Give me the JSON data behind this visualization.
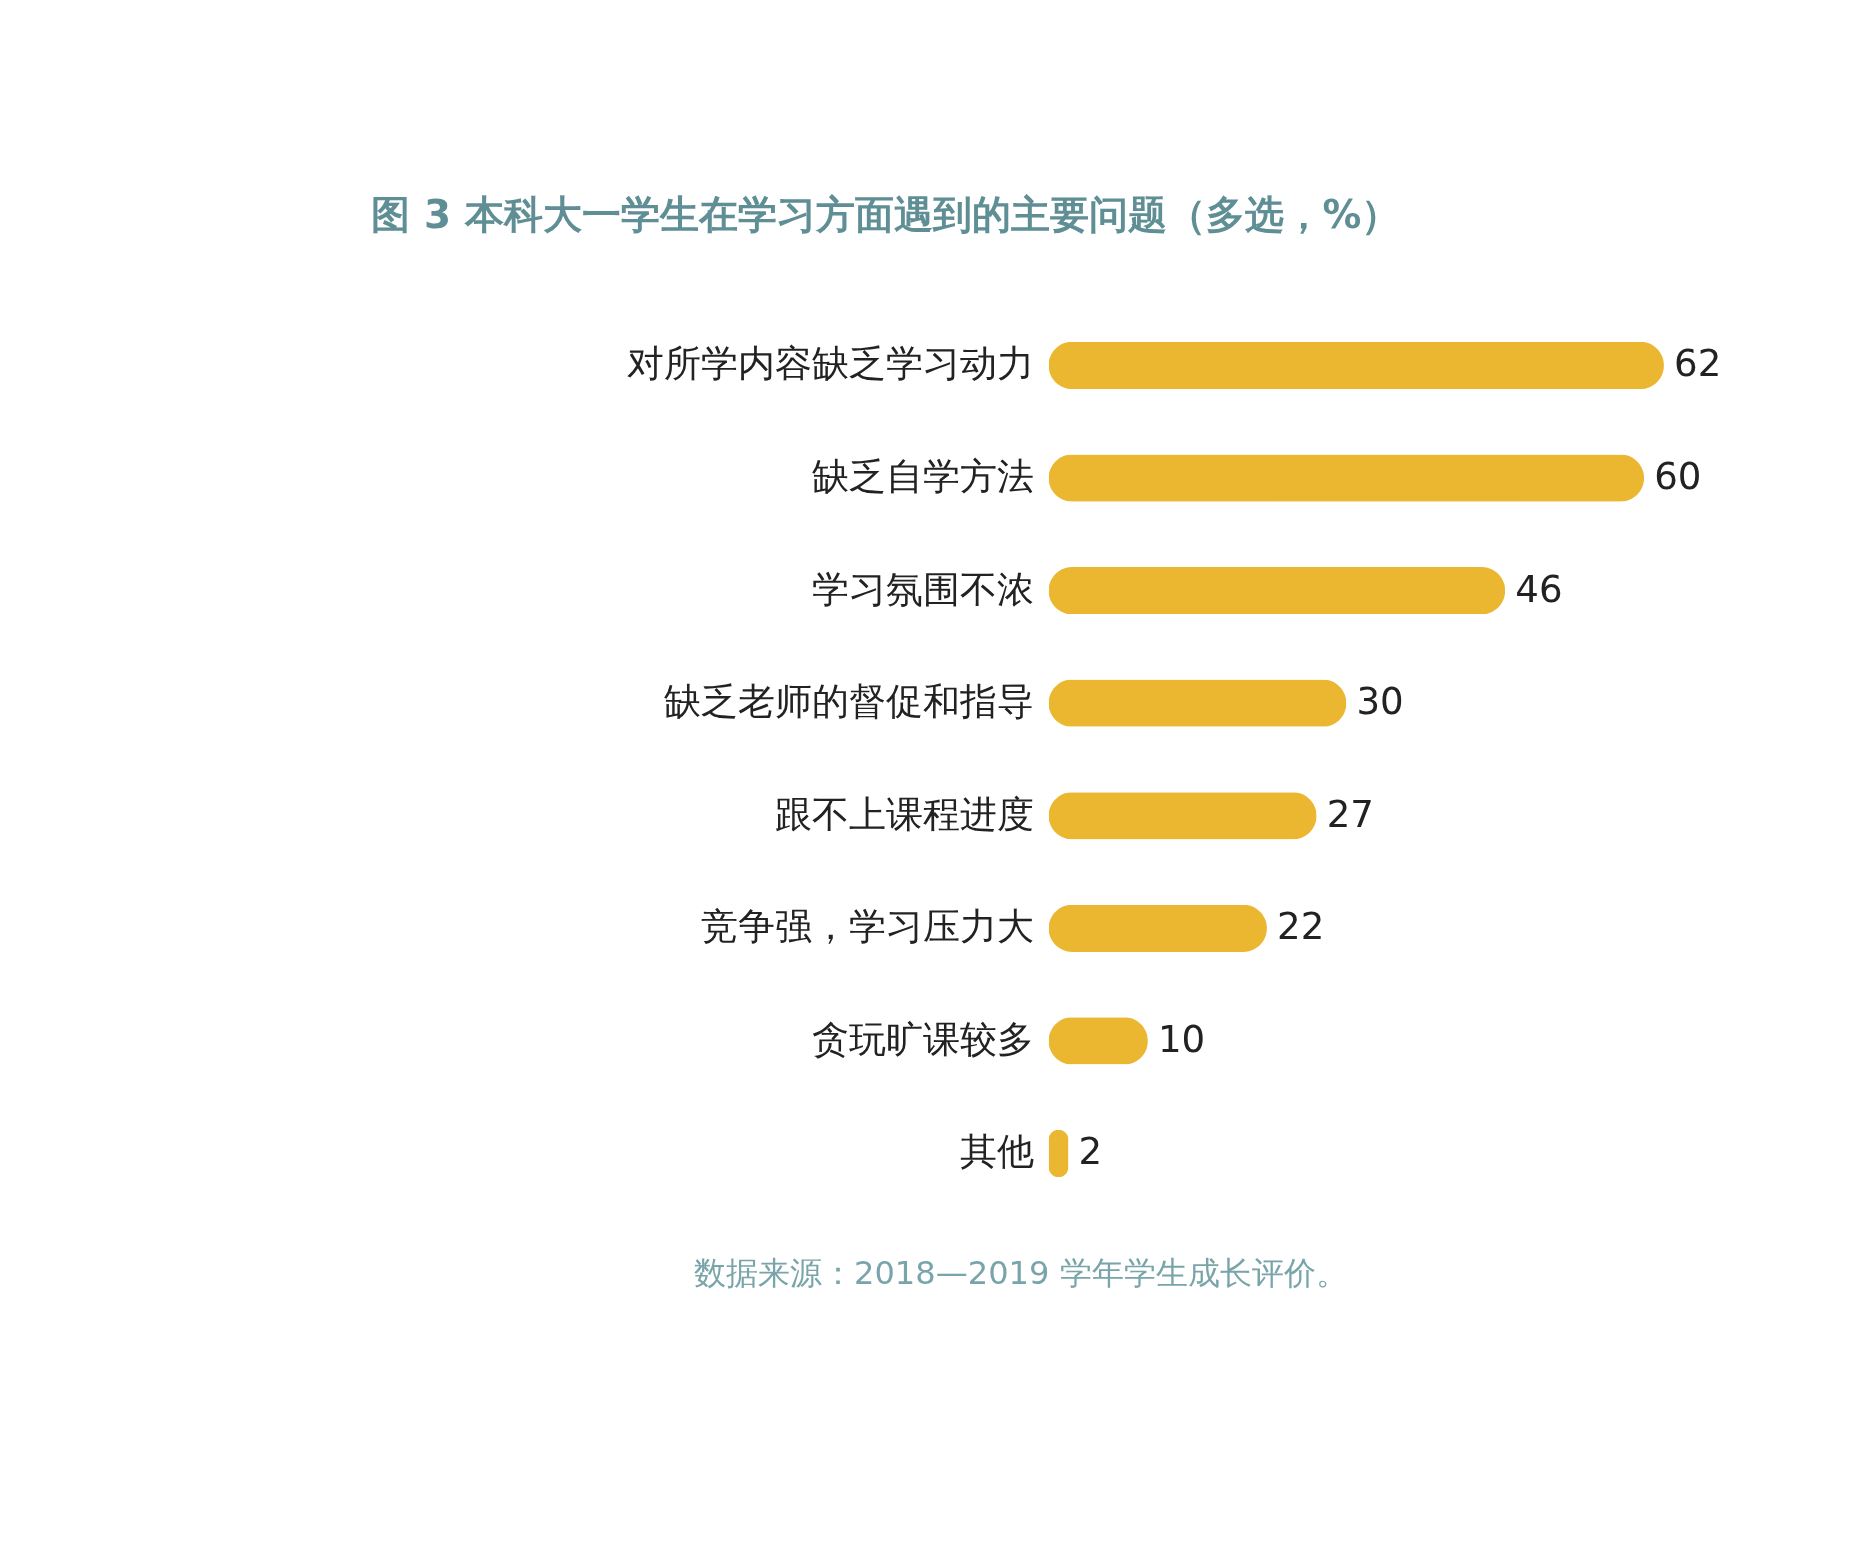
{
  "chart_data": {
    "type": "bar",
    "orientation": "horizontal",
    "title": "图 3  本科大一学生在学习方面遇到的主要问题（多选，%）",
    "categories": [
      "对所学内容缺乏学习动力",
      "缺乏自学方法",
      "学习氛围不浓",
      "缺乏老师的督促和指导",
      "跟不上课程进度",
      "竞争强，学习压力大",
      "贪玩旷课较多",
      "其他"
    ],
    "values": [
      62,
      60,
      46,
      30,
      27,
      22,
      10,
      2
    ],
    "color": "#ebb730",
    "data_labels": true,
    "annotations": [
      "数据来源：2018—2019 学年学生成长评价。"
    ]
  }
}
